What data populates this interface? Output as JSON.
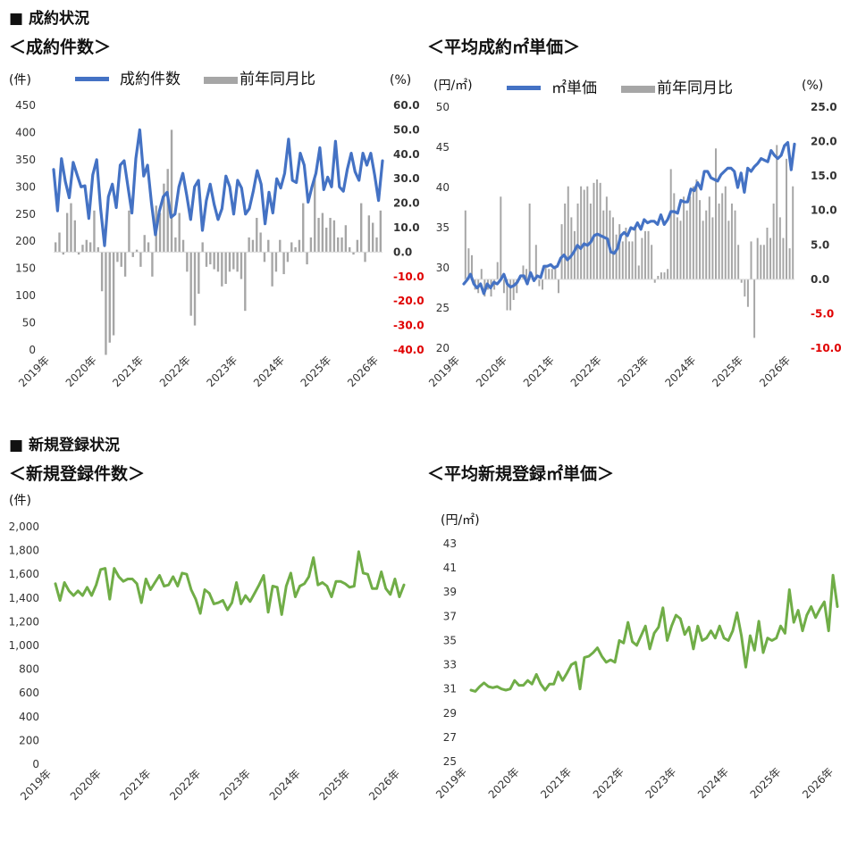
{
  "sections": {
    "contract": "■ 成約状況",
    "listing": "■ 新規登録状況"
  },
  "colors": {
    "blue": "#4472C4",
    "gray": "#A6A6A6",
    "green": "#70AD47",
    "red": "#E00000"
  },
  "chart_data": [
    {
      "type": "bar+line",
      "title": "＜成約件数＞",
      "left_unit": "(件)",
      "right_unit": "(%)",
      "legend": [
        "成約件数",
        "前年同月比"
      ],
      "x_tick_labels": [
        "2019年",
        "2020年",
        "2021年",
        "2022年",
        "2023年",
        "2024年",
        "2025年",
        "2026年"
      ],
      "left_ticks": [
        "0",
        "50",
        "100",
        "150",
        "200",
        "250",
        "300",
        "350",
        "400",
        "450"
      ],
      "right_ticks": [
        "-40.0",
        "-30.0",
        "-20.0",
        "-10.0",
        "0.0",
        "10.0",
        "20.0",
        "30.0",
        "40.0",
        "50.0",
        "60.0"
      ],
      "ylim_left": [
        0,
        450
      ],
      "ylim_right": [
        -40,
        60
      ],
      "series": [
        {
          "name": "成約件数",
          "kind": "line",
          "axis": "left",
          "values": [
            332,
            256,
            352,
            310,
            280,
            345,
            322,
            300,
            302,
            242,
            322,
            350,
            260,
            192,
            282,
            305,
            262,
            340,
            348,
            300,
            252,
            352,
            405,
            320,
            340,
            270,
            212,
            255,
            282,
            290,
            244,
            250,
            300,
            325,
            284,
            240,
            300,
            312,
            220,
            275,
            305,
            268,
            240,
            260,
            320,
            300,
            250,
            312,
            298,
            250,
            260,
            292,
            330,
            305,
            232,
            290,
            252,
            315,
            298,
            325,
            388,
            312,
            308,
            362,
            340,
            272,
            300,
            325,
            372,
            295,
            318,
            300,
            384,
            300,
            292,
            332,
            362,
            328,
            312,
            362,
            340,
            362,
            322,
            275,
            348
          ]
        },
        {
          "name": "前年同月比",
          "kind": "bar",
          "axis": "right",
          "values": [
            4,
            8,
            -1,
            16,
            20,
            13,
            -1,
            3,
            5,
            4,
            17,
            2,
            -16,
            -42,
            -37,
            -34,
            -4,
            -6,
            -10,
            17,
            -2,
            1,
            -6,
            7,
            4,
            -10,
            19,
            16,
            28,
            34,
            50,
            6,
            16,
            5,
            -8,
            -26,
            -30,
            -17,
            4,
            -6,
            -5,
            -7,
            -8,
            -14,
            -13,
            -8,
            -7,
            -8,
            -11,
            -24,
            6,
            5,
            14,
            8,
            -4,
            5,
            -14,
            -8,
            5,
            -9,
            -4,
            4,
            2,
            5,
            20,
            -5,
            6,
            30,
            14,
            16,
            10,
            14,
            13,
            6,
            6,
            11,
            2,
            -1,
            5,
            20,
            -4,
            15,
            12,
            6,
            17
          ]
        }
      ]
    },
    {
      "type": "bar+line",
      "title": "＜平均成約㎡単価＞",
      "left_unit": "(円/㎡)",
      "right_unit": "(%)",
      "legend": [
        "㎡単価",
        "前年同月比"
      ],
      "x_tick_labels": [
        "2019年",
        "2020年",
        "2021年",
        "2022年",
        "2023年",
        "2024年",
        "2025年",
        "2026年"
      ],
      "left_ticks": [
        "20",
        "25",
        "30",
        "35",
        "40",
        "45",
        "50"
      ],
      "right_ticks": [
        "-10.0",
        "-5.0",
        "0.0",
        "5.0",
        "10.0",
        "15.0",
        "20.0",
        "25.0"
      ],
      "ylim_left": [
        20,
        50
      ],
      "ylim_right": [
        -10,
        25
      ],
      "series": [
        {
          "name": "㎡単価",
          "kind": "line",
          "axis": "left",
          "values": [
            28.0,
            28.5,
            29.2,
            28.0,
            27.5,
            28.0,
            26.8,
            28.0,
            27.5,
            28.2,
            28.0,
            28.5,
            29.2,
            28.0,
            27.6,
            27.8,
            28.2,
            29.0,
            29.0,
            28.0,
            29.4,
            28.4,
            29.0,
            28.8,
            30.2,
            30.2,
            30.4,
            30.0,
            30.2,
            31.2,
            31.6,
            31.0,
            31.4,
            32.0,
            32.8,
            32.4,
            33.0,
            32.8,
            33.2,
            34.0,
            34.2,
            34.0,
            33.8,
            33.6,
            32.0,
            31.8,
            32.4,
            34.0,
            34.4,
            34.0,
            35.0,
            34.8,
            35.6,
            34.8,
            36.0,
            35.6,
            35.8,
            35.8,
            35.4,
            36.6,
            35.4,
            36.0,
            37.0,
            37.0,
            36.8,
            38.4,
            38.2,
            38.2,
            39.8,
            39.6,
            40.6,
            39.8,
            42.0,
            42.0,
            41.2,
            41.0,
            40.8,
            41.6,
            42.0,
            42.4,
            42.4,
            42.0,
            40.0,
            41.8,
            39.4,
            42.4,
            42.0,
            42.6,
            43.0,
            43.6,
            43.4,
            43.2,
            44.6,
            44.0,
            43.6,
            44.0,
            45.2,
            45.6,
            42.2,
            45.4
          ]
        },
        {
          "name": "前年同月比",
          "kind": "bar",
          "axis": "right",
          "values": [
            10,
            4.5,
            3.5,
            -1.5,
            -2,
            1.5,
            -2.5,
            -1.5,
            -2.5,
            -1.5,
            2.5,
            12,
            -2,
            -4.5,
            -4.5,
            -3,
            -2,
            0.5,
            2,
            1.5,
            11,
            0.5,
            5,
            -1,
            -1.5,
            2,
            1.5,
            1.5,
            2,
            -2,
            8,
            11,
            13.5,
            9,
            7,
            11,
            13.5,
            13,
            13.5,
            11,
            14,
            14.5,
            14,
            10,
            12,
            10,
            9,
            6.5,
            8,
            5.5,
            7.5,
            5.5,
            5.5,
            7.5,
            2,
            6,
            7,
            7,
            5,
            -0.5,
            0.5,
            1,
            1,
            1.5,
            16,
            12.5,
            9,
            8.5,
            12,
            10,
            12,
            13.5,
            14.5,
            11.5,
            8.5,
            10,
            12,
            9,
            19,
            11,
            12.5,
            13.5,
            8.5,
            11,
            10,
            5,
            -0.5,
            -2.5,
            -4,
            5.5,
            -8.5,
            6,
            5,
            5,
            7.5,
            6,
            11,
            19.5,
            9,
            6,
            17.5,
            4.5,
            13.5
          ]
        }
      ]
    },
    {
      "type": "line",
      "title": "＜新規登録件数＞",
      "left_unit": "(件)",
      "x_tick_labels": [
        "2019年",
        "2020年",
        "2021年",
        "2022年",
        "2023年",
        "2024年",
        "2025年",
        "2026年"
      ],
      "left_ticks": [
        "0",
        "200",
        "400",
        "600",
        "800",
        "1,000",
        "1,200",
        "1,400",
        "1,600",
        "1,800",
        "2,000"
      ],
      "ylim": [
        0,
        2000
      ],
      "series": [
        {
          "name": "新規登録件数",
          "values": [
            1520,
            1380,
            1530,
            1460,
            1420,
            1460,
            1420,
            1490,
            1420,
            1510,
            1640,
            1650,
            1390,
            1650,
            1580,
            1540,
            1560,
            1560,
            1520,
            1360,
            1560,
            1470,
            1530,
            1590,
            1500,
            1510,
            1580,
            1500,
            1610,
            1600,
            1470,
            1390,
            1270,
            1470,
            1440,
            1350,
            1360,
            1380,
            1300,
            1360,
            1530,
            1350,
            1420,
            1370,
            1440,
            1510,
            1590,
            1280,
            1500,
            1490,
            1260,
            1500,
            1610,
            1410,
            1500,
            1520,
            1580,
            1740,
            1510,
            1530,
            1500,
            1410,
            1540,
            1540,
            1520,
            1490,
            1500,
            1790,
            1610,
            1600,
            1480,
            1480,
            1620,
            1480,
            1430,
            1560,
            1410,
            1510
          ]
        }
      ]
    },
    {
      "type": "line",
      "title": "＜平均新規登録㎡単価＞",
      "left_unit": "(円/㎡)",
      "x_tick_labels": [
        "2019年",
        "2020年",
        "2021年",
        "2022年",
        "2023年",
        "2024年",
        "2025年",
        "2026年"
      ],
      "left_ticks": [
        "25",
        "27",
        "29",
        "31",
        "33",
        "35",
        "37",
        "39",
        "41",
        "43"
      ],
      "ylim": [
        25,
        43
      ],
      "series": [
        {
          "name": "平均新規登録㎡単価",
          "values": [
            30.9,
            30.8,
            31.2,
            31.5,
            31.2,
            31.1,
            31.2,
            31.0,
            30.9,
            31.0,
            31.7,
            31.3,
            31.3,
            31.7,
            31.4,
            32.2,
            31.4,
            30.9,
            31.4,
            31.4,
            32.4,
            31.7,
            32.3,
            33.0,
            33.2,
            31.0,
            33.6,
            33.7,
            34.0,
            34.4,
            33.7,
            33.2,
            33.4,
            33.2,
            35.0,
            34.8,
            36.5,
            34.9,
            34.6,
            35.4,
            36.2,
            34.3,
            35.6,
            36.1,
            37.7,
            35.0,
            36.2,
            37.1,
            36.8,
            35.5,
            36.1,
            34.3,
            36.2,
            35.0,
            35.2,
            35.8,
            35.2,
            36.2,
            35.2,
            35.0,
            35.8,
            37.3,
            35.4,
            32.8,
            35.4,
            34.2,
            36.6,
            34.0,
            35.2,
            35.0,
            35.2,
            36.2,
            35.6,
            39.2,
            36.5,
            37.5,
            35.8,
            37.1,
            37.8,
            36.9,
            37.6,
            38.2,
            35.8,
            40.4,
            37.8
          ]
        }
      ]
    }
  ]
}
